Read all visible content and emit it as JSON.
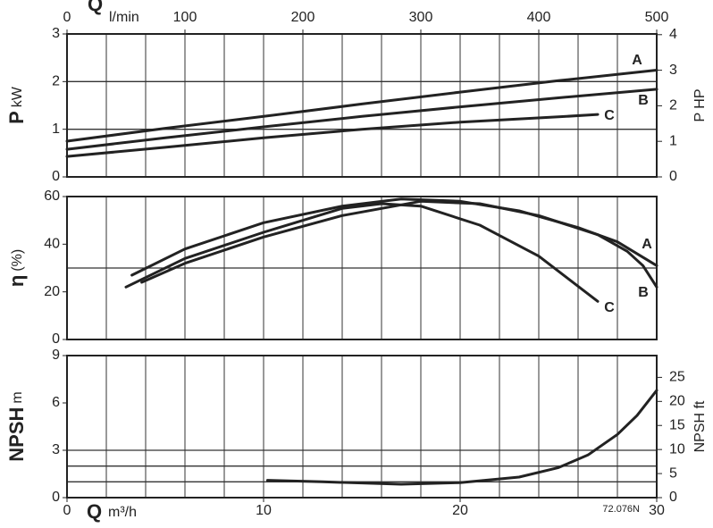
{
  "chart_data": [
    {
      "type": "line",
      "ylabel": "P",
      "ylabel_unit": "kW",
      "y2label": "P HP",
      "top_xlabel": "Q",
      "x2label": "l/min",
      "x2lim": [
        0,
        500
      ],
      "x2ticks": [
        0,
        100,
        200,
        300,
        400,
        500
      ],
      "xlim": [
        0,
        30
      ],
      "xgrid": [
        0,
        2,
        4,
        6,
        8,
        10,
        12,
        14,
        16,
        18,
        20,
        22,
        24,
        26,
        28,
        30
      ],
      "ylim": [
        0,
        3
      ],
      "yticks": [
        0,
        1,
        2,
        3
      ],
      "ygrid": [
        1,
        2
      ],
      "y2lim": [
        0,
        4.02
      ],
      "y2ticks": [
        0,
        1,
        2,
        3,
        4
      ],
      "series": [
        {
          "name": "A",
          "color": "#222222",
          "x": [
            0,
            5,
            10,
            15,
            20,
            25,
            30
          ],
          "values": [
            0.75,
            1.02,
            1.27,
            1.53,
            1.78,
            2.02,
            2.24
          ]
        },
        {
          "name": "B",
          "color": "#222222",
          "x": [
            0,
            5,
            10,
            15,
            20,
            25,
            30
          ],
          "values": [
            0.58,
            0.82,
            1.05,
            1.27,
            1.47,
            1.66,
            1.84
          ]
        },
        {
          "name": "C",
          "color": "#222222",
          "x": [
            0,
            5,
            10,
            15,
            20,
            25,
            27
          ],
          "values": [
            0.43,
            0.62,
            0.82,
            1.0,
            1.15,
            1.26,
            1.31
          ]
        }
      ]
    },
    {
      "type": "line",
      "ylabel": "η",
      "ylabel_unit": "(%)",
      "xlim": [
        0,
        30
      ],
      "xgrid": [
        0,
        2,
        4,
        6,
        8,
        10,
        12,
        14,
        16,
        18,
        20,
        22,
        24,
        26,
        28,
        30
      ],
      "ylim": [
        0,
        60
      ],
      "yticks": [
        0,
        20,
        40,
        60
      ],
      "ygrid": [
        30
      ],
      "series": [
        {
          "name": "A",
          "color": "#222222",
          "x": [
            3.3,
            6,
            10,
            14,
            17,
            20,
            23,
            26,
            28,
            30
          ],
          "values": [
            27,
            38,
            49,
            56,
            59,
            58,
            54,
            47,
            41,
            31
          ]
        },
        {
          "name": "B",
          "color": "#222222",
          "x": [
            3.8,
            6,
            10,
            14,
            18,
            21,
            24,
            27,
            28.5,
            29.3,
            30
          ],
          "values": [
            24,
            32,
            43,
            52,
            58,
            57,
            52,
            44,
            37,
            31,
            22
          ]
        },
        {
          "name": "C",
          "color": "#222222",
          "x": [
            3,
            6,
            10,
            14,
            16,
            18,
            21,
            24,
            27
          ],
          "values": [
            22,
            34,
            45,
            55,
            57,
            56,
            48,
            35,
            16
          ]
        }
      ]
    },
    {
      "type": "line",
      "ylabel": "NPSH",
      "ylabel_unit": "m",
      "y2label": "NPSH ft",
      "xlabel": "Q",
      "xlabel_unit": "m³/h",
      "note": "72.076N",
      "xlim": [
        0,
        30
      ],
      "xticks": [
        0,
        10,
        20,
        30
      ],
      "xgrid": [
        0,
        2,
        4,
        6,
        8,
        10,
        12,
        14,
        16,
        18,
        20,
        22,
        24,
        26,
        28,
        30
      ],
      "ylim": [
        0,
        9
      ],
      "yticks": [
        0,
        3,
        6,
        9
      ],
      "ygrid": [
        1,
        2,
        3
      ],
      "y2lim": [
        0,
        29.53
      ],
      "y2ticks": [
        0,
        5,
        10,
        15,
        20,
        25
      ],
      "series": [
        {
          "color": "#222222",
          "x": [
            10.2,
            13,
            17,
            20,
            23,
            25,
            26.5,
            28,
            29,
            30
          ],
          "values": [
            1.1,
            1.0,
            0.85,
            0.95,
            1.3,
            1.9,
            2.7,
            4.0,
            5.2,
            6.8
          ]
        }
      ]
    }
  ]
}
